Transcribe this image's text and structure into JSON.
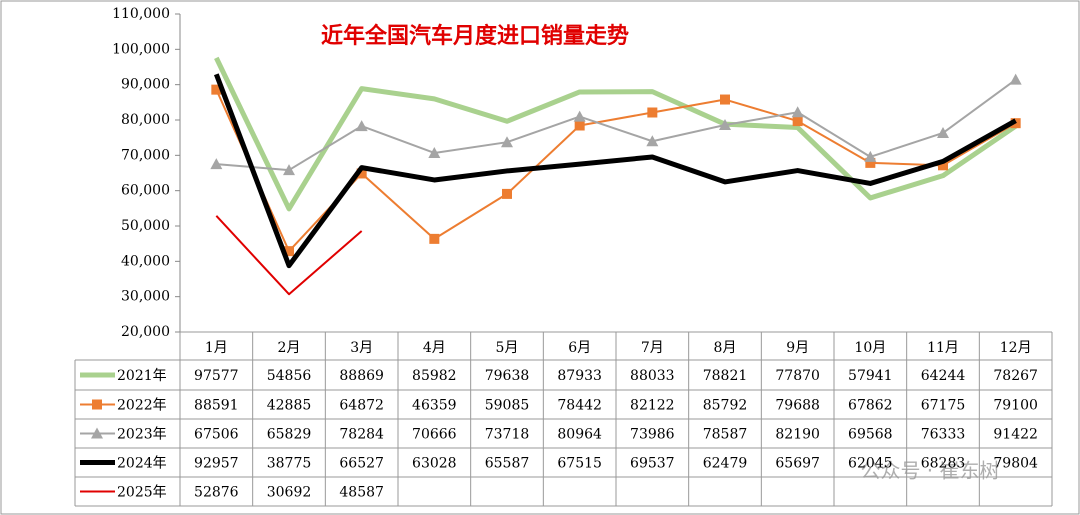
{
  "chart_data": {
    "type": "line",
    "title": "近年全国汽车月度进口销量走势",
    "categories": [
      "1月",
      "2月",
      "3月",
      "4月",
      "5月",
      "6月",
      "7月",
      "8月",
      "9月",
      "10月",
      "11月",
      "12月"
    ],
    "series": [
      {
        "name": "2021年",
        "color": "#a9d18e",
        "marker": "none",
        "width": 5,
        "values": [
          97577,
          54856,
          88869,
          85982,
          79638,
          87933,
          88033,
          78821,
          77870,
          57941,
          64244,
          78267
        ]
      },
      {
        "name": "2022年",
        "color": "#ed7d31",
        "marker": "square",
        "width": 2,
        "values": [
          88591,
          42885,
          64872,
          46359,
          59085,
          78442,
          82122,
          85792,
          79688,
          67862,
          67175,
          79100
        ]
      },
      {
        "name": "2023年",
        "color": "#a5a5a5",
        "marker": "triangle",
        "width": 2,
        "values": [
          67506,
          65829,
          78284,
          70666,
          73718,
          80964,
          73986,
          78587,
          82190,
          69568,
          76333,
          91422
        ]
      },
      {
        "name": "2024年",
        "color": "#000000",
        "marker": "none",
        "width": 5,
        "values": [
          92957,
          38775,
          66527,
          63028,
          65587,
          67515,
          69537,
          62479,
          65697,
          62045,
          68283,
          79804
        ]
      },
      {
        "name": "2025年",
        "color": "#e00000",
        "marker": "none",
        "width": 2,
        "values": [
          52876,
          30692,
          48587,
          null,
          null,
          null,
          null,
          null,
          null,
          null,
          null,
          null
        ]
      }
    ],
    "ylim": [
      20000,
      110000
    ],
    "yticks": [
      {
        "value": 20000,
        "label": "20,000"
      },
      {
        "value": 30000,
        "label": "30,000"
      },
      {
        "value": 40000,
        "label": "40,000"
      },
      {
        "value": 50000,
        "label": "50,000"
      },
      {
        "value": 60000,
        "label": "60,000"
      },
      {
        "value": 70000,
        "label": "70,000"
      },
      {
        "value": 80000,
        "label": "80,000"
      },
      {
        "value": 90000,
        "label": "90,000"
      },
      {
        "value": 100000,
        "label": "100,000"
      },
      {
        "value": 110000,
        "label": "110,000"
      }
    ],
    "grid": false,
    "watermark": "公众号 · 崔东树"
  }
}
